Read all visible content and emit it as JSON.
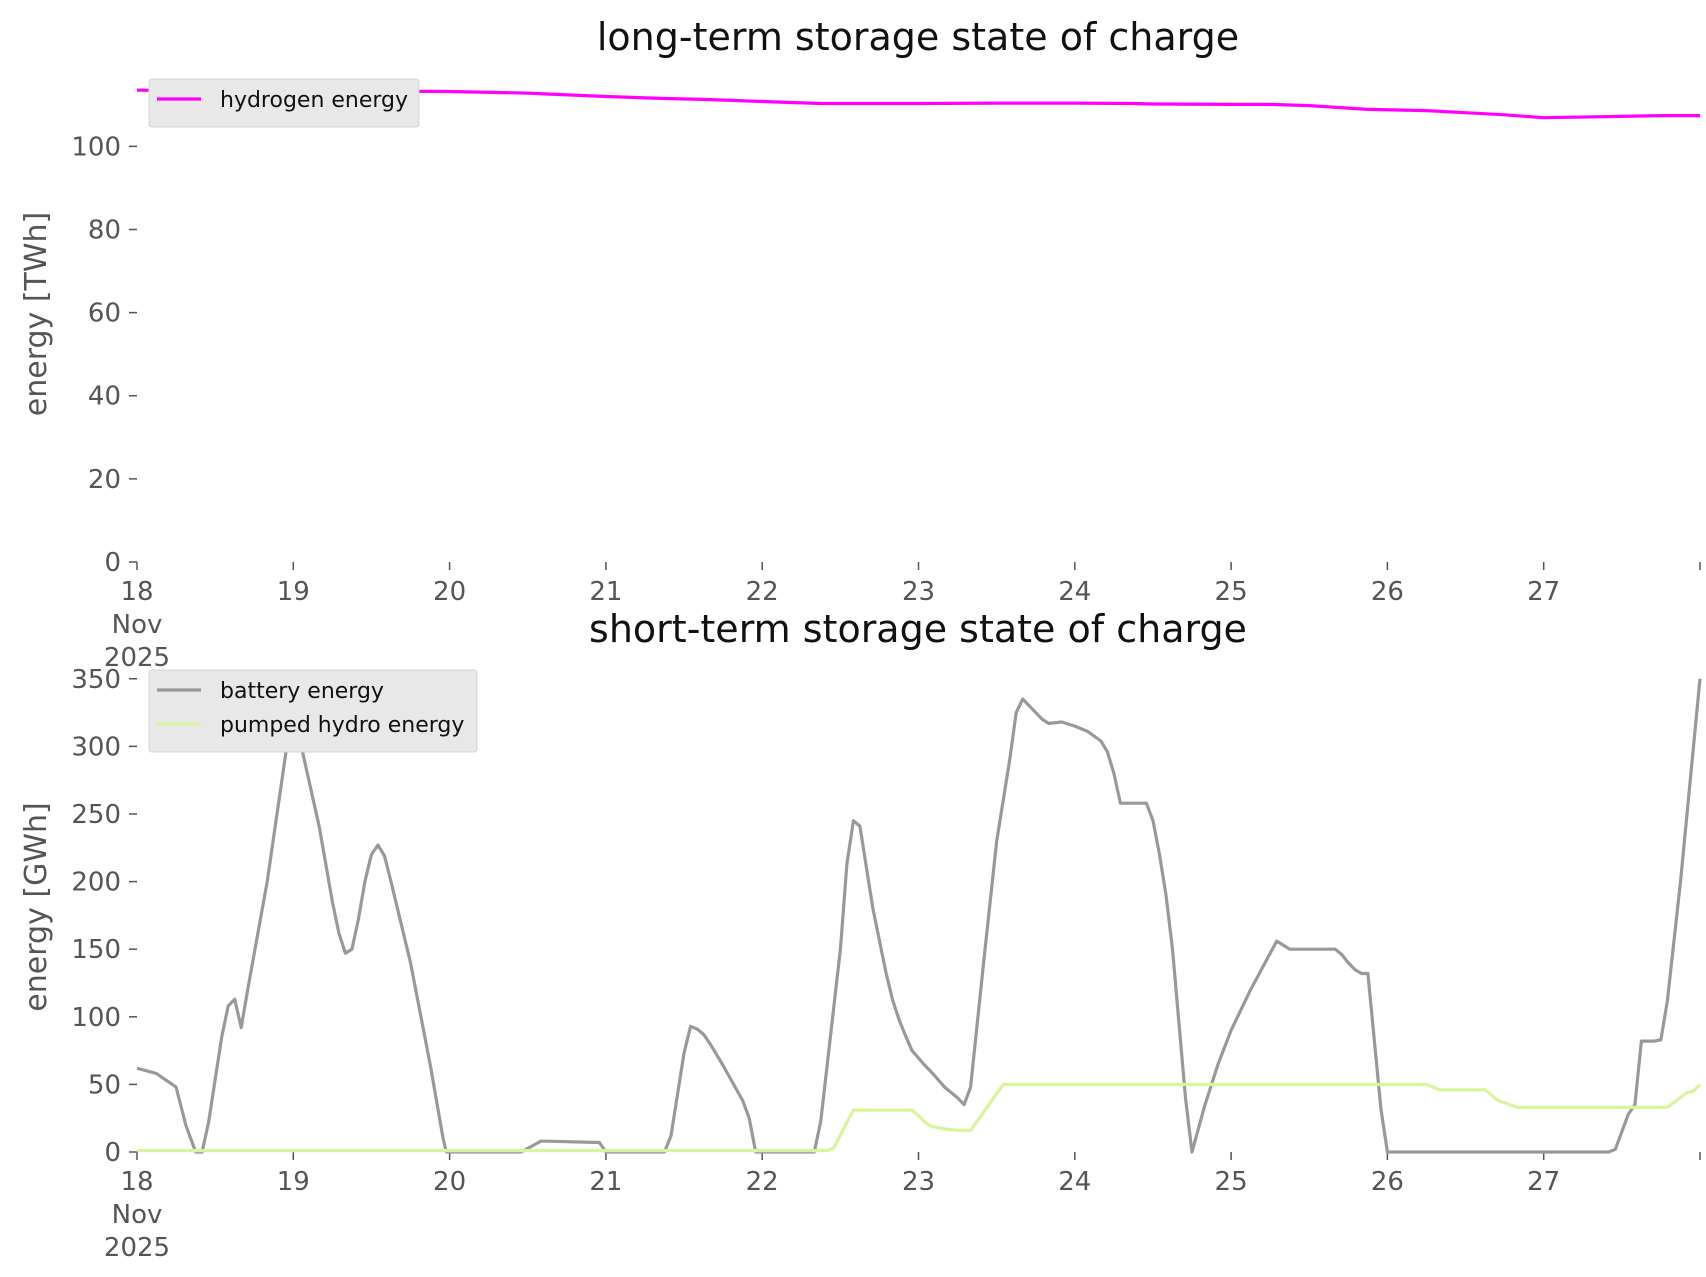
{
  "chart_data": [
    {
      "type": "line",
      "title": "long-term storage state of charge",
      "ylabel": "energy [TWh]",
      "xlabel": "",
      "x_domain": [
        "2025-11-18",
        "2025-11-28"
      ],
      "x_ticks": [
        {
          "date": "2025-11-18",
          "lines": [
            "18",
            "Nov",
            "2025"
          ]
        },
        {
          "date": "2025-11-19",
          "lines": [
            "19"
          ]
        },
        {
          "date": "2025-11-20",
          "lines": [
            "20"
          ]
        },
        {
          "date": "2025-11-21",
          "lines": [
            "21"
          ]
        },
        {
          "date": "2025-11-22",
          "lines": [
            "22"
          ]
        },
        {
          "date": "2025-11-23",
          "lines": [
            "23"
          ]
        },
        {
          "date": "2025-11-24",
          "lines": [
            "24"
          ]
        },
        {
          "date": "2025-11-25",
          "lines": [
            "25"
          ]
        },
        {
          "date": "2025-11-26",
          "lines": [
            "26"
          ]
        },
        {
          "date": "2025-11-27",
          "lines": [
            "27"
          ]
        }
      ],
      "ylim": [
        0,
        115
      ],
      "y_ticks": [
        0,
        20,
        40,
        60,
        80,
        100
      ],
      "grid": false,
      "legend_position": "top-left",
      "series": [
        {
          "name": "hydrogen energy",
          "color": "#ff00ff",
          "points": [
            [
              "2025-11-18 00:00",
              113.5
            ],
            [
              "2025-11-18 12:00",
              113.4
            ],
            [
              "2025-11-19 00:00",
              113.4
            ],
            [
              "2025-11-19 12:00",
              113.3
            ],
            [
              "2025-11-20 00:00",
              113.2
            ],
            [
              "2025-11-20 12:00",
              112.8
            ],
            [
              "2025-11-20 15:00",
              112.6
            ],
            [
              "2025-11-21 00:00",
              112.0
            ],
            [
              "2025-11-21 09:00",
              111.5
            ],
            [
              "2025-11-21 15:00",
              111.3
            ],
            [
              "2025-11-22 00:00",
              110.8
            ],
            [
              "2025-11-22 09:00",
              110.3
            ],
            [
              "2025-11-23 00:00",
              110.3
            ],
            [
              "2025-11-23 12:00",
              110.4
            ],
            [
              "2025-11-24 00:00",
              110.4
            ],
            [
              "2025-11-24 09:00",
              110.3
            ],
            [
              "2025-11-24 12:00",
              110.2
            ],
            [
              "2025-11-25 00:00",
              110.1
            ],
            [
              "2025-11-25 06:00",
              110.1
            ],
            [
              "2025-11-25 12:00",
              109.8
            ],
            [
              "2025-11-25 21:00",
              108.9
            ],
            [
              "2025-11-26 06:00",
              108.6
            ],
            [
              "2025-11-26 12:00",
              108.1
            ],
            [
              "2025-11-26 18:00",
              107.6
            ],
            [
              "2025-11-27 00:00",
              106.9
            ],
            [
              "2025-11-27 12:00",
              107.2
            ],
            [
              "2025-11-27 18:00",
              107.4
            ],
            [
              "2025-11-28 00:00",
              107.4
            ]
          ]
        }
      ]
    },
    {
      "type": "line",
      "title": "short-term storage state of charge",
      "ylabel": "energy [GWh]",
      "xlabel": "",
      "x_domain": [
        "2025-11-18",
        "2025-11-28"
      ],
      "x_ticks": [
        {
          "date": "2025-11-18",
          "lines": [
            "18",
            "Nov",
            "2025"
          ]
        },
        {
          "date": "2025-11-19",
          "lines": [
            "19"
          ]
        },
        {
          "date": "2025-11-20",
          "lines": [
            "20"
          ]
        },
        {
          "date": "2025-11-21",
          "lines": [
            "21"
          ]
        },
        {
          "date": "2025-11-22",
          "lines": [
            "22"
          ]
        },
        {
          "date": "2025-11-23",
          "lines": [
            "23"
          ]
        },
        {
          "date": "2025-11-24",
          "lines": [
            "24"
          ]
        },
        {
          "date": "2025-11-25",
          "lines": [
            "25"
          ]
        },
        {
          "date": "2025-11-26",
          "lines": [
            "26"
          ]
        },
        {
          "date": "2025-11-27",
          "lines": [
            "27"
          ]
        }
      ],
      "ylim": [
        0,
        355
      ],
      "y_ticks": [
        0,
        50,
        100,
        150,
        200,
        250,
        300,
        350
      ],
      "grid": false,
      "legend_position": "top-left",
      "series": [
        {
          "name": "battery energy",
          "color": "#999999",
          "points": [
            [
              "2025-11-18 00:00",
              62
            ],
            [
              "2025-11-18 03:00",
              58
            ],
            [
              "2025-11-18 06:00",
              48
            ],
            [
              "2025-11-18 07:30",
              20
            ],
            [
              "2025-11-18 09:00",
              0
            ],
            [
              "2025-11-18 10:00",
              0
            ],
            [
              "2025-11-18 11:00",
              22
            ],
            [
              "2025-11-18 13:00",
              85
            ],
            [
              "2025-11-18 14:00",
              108
            ],
            [
              "2025-11-18 15:00",
              113
            ],
            [
              "2025-11-18 16:00",
              92
            ],
            [
              "2025-11-18 17:00",
              120
            ],
            [
              "2025-11-18 20:00",
              200
            ],
            [
              "2025-11-18 23:00",
              300
            ],
            [
              "2025-11-19 00:00",
              335
            ],
            [
              "2025-11-19 01:00",
              305
            ],
            [
              "2025-11-19 04:00",
              240
            ],
            [
              "2025-11-19 06:00",
              185
            ],
            [
              "2025-11-19 07:00",
              162
            ],
            [
              "2025-11-19 08:00",
              147
            ],
            [
              "2025-11-19 09:00",
              150
            ],
            [
              "2025-11-19 10:00",
              172
            ],
            [
              "2025-11-19 11:00",
              200
            ],
            [
              "2025-11-19 12:00",
              220
            ],
            [
              "2025-11-19 13:00",
              227
            ],
            [
              "2025-11-19 14:00",
              219
            ],
            [
              "2025-11-19 15:00",
              200
            ],
            [
              "2025-11-19 18:00",
              140
            ],
            [
              "2025-11-19 21:00",
              65
            ],
            [
              "2025-11-19 23:00",
              10
            ],
            [
              "2025-11-19 23:30",
              0
            ],
            [
              "2025-11-20 11:00",
              0
            ],
            [
              "2025-11-20 14:00",
              8
            ],
            [
              "2025-11-20 15:00",
              8
            ],
            [
              "2025-11-20 23:00",
              7
            ],
            [
              "2025-11-21 00:00",
              0
            ],
            [
              "2025-11-21 09:00",
              0
            ],
            [
              "2025-11-21 10:00",
              12
            ],
            [
              "2025-11-21 12:00",
              73
            ],
            [
              "2025-11-21 13:00",
              93
            ],
            [
              "2025-11-21 14:00",
              91
            ],
            [
              "2025-11-21 15:00",
              87
            ],
            [
              "2025-11-21 16:00",
              80
            ],
            [
              "2025-11-21 18:00",
              64
            ],
            [
              "2025-11-21 21:00",
              38
            ],
            [
              "2025-11-21 22:00",
              25
            ],
            [
              "2025-11-21 23:00",
              0
            ],
            [
              "2025-11-22 08:00",
              0
            ],
            [
              "2025-11-22 09:00",
              23
            ],
            [
              "2025-11-22 12:00",
              150
            ],
            [
              "2025-11-22 13:00",
              213
            ],
            [
              "2025-11-22 14:00",
              245
            ],
            [
              "2025-11-22 15:00",
              241
            ],
            [
              "2025-11-22 17:00",
              180
            ],
            [
              "2025-11-22 19:00",
              133
            ],
            [
              "2025-11-22 20:00",
              113
            ],
            [
              "2025-11-22 21:00",
              98
            ],
            [
              "2025-11-22 22:00",
              86
            ],
            [
              "2025-11-22 23:00",
              75
            ],
            [
              "2025-11-23 01:00",
              64
            ],
            [
              "2025-11-23 02:00",
              59
            ],
            [
              "2025-11-23 04:00",
              48
            ],
            [
              "2025-11-23 06:00",
              40
            ],
            [
              "2025-11-23 07:00",
              35
            ],
            [
              "2025-11-23 08:00",
              48
            ],
            [
              "2025-11-23 10:00",
              140
            ],
            [
              "2025-11-23 12:00",
              230
            ],
            [
              "2025-11-23 14:00",
              290
            ],
            [
              "2025-11-23 15:00",
              325
            ],
            [
              "2025-11-23 16:00",
              335
            ],
            [
              "2025-11-23 17:00",
              330
            ],
            [
              "2025-11-23 19:00",
              320
            ],
            [
              "2025-11-23 20:00",
              317
            ],
            [
              "2025-11-23 22:00",
              318
            ],
            [
              "2025-11-24 00:00",
              315
            ],
            [
              "2025-11-24 02:00",
              311
            ],
            [
              "2025-11-24 04:00",
              304
            ],
            [
              "2025-11-24 05:00",
              296
            ],
            [
              "2025-11-24 06:00",
              280
            ],
            [
              "2025-11-24 07:00",
              258
            ],
            [
              "2025-11-24 11:00",
              258
            ],
            [
              "2025-11-24 12:00",
              245
            ],
            [
              "2025-11-24 13:00",
              220
            ],
            [
              "2025-11-24 14:00",
              190
            ],
            [
              "2025-11-24 15:00",
              150
            ],
            [
              "2025-11-24 17:00",
              40
            ],
            [
              "2025-11-24 18:00",
              0
            ],
            [
              "2025-11-24 20:00",
              35
            ],
            [
              "2025-11-24 22:00",
              65
            ],
            [
              "2025-11-25 00:00",
              90
            ],
            [
              "2025-11-25 03:00",
              120
            ],
            [
              "2025-11-25 06:00",
              147
            ],
            [
              "2025-11-25 07:00",
              156
            ],
            [
              "2025-11-25 08:00",
              153
            ],
            [
              "2025-11-25 09:00",
              150
            ],
            [
              "2025-11-25 16:00",
              150
            ],
            [
              "2025-11-25 17:00",
              146
            ],
            [
              "2025-11-25 18:00",
              140
            ],
            [
              "2025-11-25 19:00",
              135
            ],
            [
              "2025-11-25 20:00",
              132
            ],
            [
              "2025-11-25 21:00",
              132
            ],
            [
              "2025-11-25 23:00",
              32
            ],
            [
              "2025-11-26 00:00",
              0
            ],
            [
              "2025-11-27 10:00",
              0
            ],
            [
              "2025-11-27 11:00",
              2
            ],
            [
              "2025-11-27 13:00",
              28
            ],
            [
              "2025-11-27 14:00",
              35
            ],
            [
              "2025-11-27 15:00",
              82
            ],
            [
              "2025-11-27 17:00",
              82
            ],
            [
              "2025-11-27 18:00",
              83
            ],
            [
              "2025-11-27 19:00",
              112
            ],
            [
              "2025-11-27 21:00",
              200
            ],
            [
              "2025-11-28 00:00",
              350
            ]
          ]
        },
        {
          "name": "pumped hydro energy",
          "color": "#d9f59a",
          "points": [
            [
              "2025-11-18 00:00",
              1
            ],
            [
              "2025-11-22 10:00",
              1
            ],
            [
              "2025-11-22 11:00",
              3
            ],
            [
              "2025-11-22 13:00",
              22
            ],
            [
              "2025-11-22 14:00",
              31
            ],
            [
              "2025-11-22 23:00",
              31
            ],
            [
              "2025-11-23 00:00",
              27
            ],
            [
              "2025-11-23 01:00",
              22
            ],
            [
              "2025-11-23 02:00",
              19
            ],
            [
              "2025-11-23 04:00",
              17
            ],
            [
              "2025-11-23 06:00",
              16
            ],
            [
              "2025-11-23 08:00",
              16
            ],
            [
              "2025-11-23 13:00",
              50
            ],
            [
              "2025-11-26 06:00",
              50
            ],
            [
              "2025-11-26 08:00",
              46
            ],
            [
              "2025-11-26 15:00",
              46
            ],
            [
              "2025-11-26 17:00",
              38
            ],
            [
              "2025-11-26 20:00",
              33
            ],
            [
              "2025-11-27 19:00",
              33
            ],
            [
              "2025-11-27 22:00",
              44
            ],
            [
              "2025-11-27 23:00",
              45
            ],
            [
              "2025-11-28 00:00",
              50
            ]
          ]
        }
      ]
    }
  ]
}
